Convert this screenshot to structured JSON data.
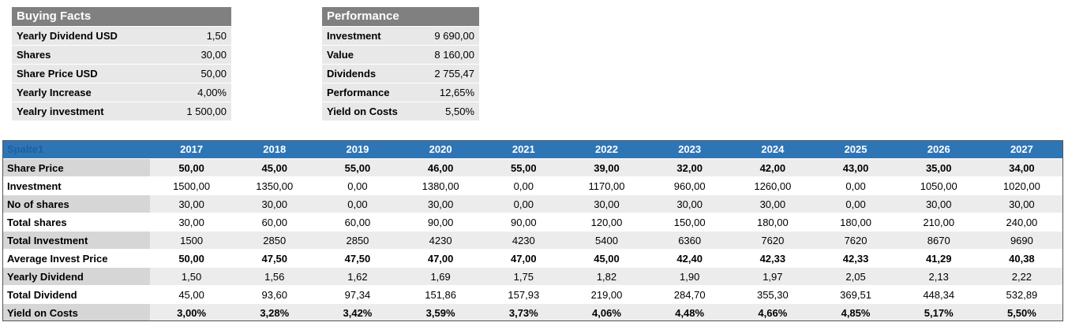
{
  "buying_facts": {
    "title": "Buying Facts",
    "rows": [
      [
        "Yearly Dividend USD",
        "1,50"
      ],
      [
        "Shares",
        "30,00"
      ],
      [
        "Share Price USD",
        "50,00"
      ],
      [
        "Yearly Increase",
        "4,00%"
      ],
      [
        "Yealry investment",
        "1 500,00"
      ]
    ]
  },
  "performance": {
    "title": "Performance",
    "rows": [
      [
        "Investment",
        "9 690,00"
      ],
      [
        "Value",
        "8 160,00"
      ],
      [
        "Dividends",
        "2 755,47"
      ],
      [
        "Performance",
        "12,65%"
      ],
      [
        "Yield on Costs",
        "5,50%"
      ]
    ]
  },
  "table": {
    "header": [
      "Spalte1",
      "2017",
      "2018",
      "2019",
      "2020",
      "2021",
      "2022",
      "2023",
      "2024",
      "2025",
      "2026",
      "2027"
    ],
    "rows": [
      [
        "Share Price",
        "50,00",
        "45,00",
        "55,00",
        "46,00",
        "55,00",
        "39,00",
        "32,00",
        "42,00",
        "43,00",
        "35,00",
        "34,00"
      ],
      [
        "Investment",
        "1500,00",
        "1350,00",
        "0,00",
        "1380,00",
        "0,00",
        "1170,00",
        "960,00",
        "1260,00",
        "0,00",
        "1050,00",
        "1020,00"
      ],
      [
        "No of shares",
        "30,00",
        "30,00",
        "0,00",
        "30,00",
        "0,00",
        "30,00",
        "30,00",
        "30,00",
        "0,00",
        "30,00",
        "30,00"
      ],
      [
        "Total shares",
        "30,00",
        "60,00",
        "60,00",
        "90,00",
        "90,00",
        "120,00",
        "150,00",
        "180,00",
        "180,00",
        "210,00",
        "240,00"
      ],
      [
        "Total Investment",
        "1500",
        "2850",
        "2850",
        "4230",
        "4230",
        "5400",
        "6360",
        "7620",
        "7620",
        "8670",
        "9690"
      ],
      [
        "Average Invest Price",
        "50,00",
        "47,50",
        "47,50",
        "47,00",
        "47,00",
        "45,00",
        "42,40",
        "42,33",
        "42,33",
        "41,29",
        "40,38"
      ],
      [
        "Yearly Dividend",
        "1,50",
        "1,56",
        "1,62",
        "1,69",
        "1,75",
        "1,82",
        "1,90",
        "1,97",
        "2,05",
        "2,13",
        "2,22"
      ],
      [
        "Total Dividend",
        "45,00",
        "93,60",
        "97,34",
        "151,86",
        "157,93",
        "219,00",
        "284,70",
        "355,30",
        "369,51",
        "448,34",
        "532,89"
      ],
      [
        "Yield on Costs",
        "3,00%",
        "3,28%",
        "3,42%",
        "3,59%",
        "3,73%",
        "4,06%",
        "4,48%",
        "4,66%",
        "4,85%",
        "5,17%",
        "5,50%"
      ]
    ]
  }
}
